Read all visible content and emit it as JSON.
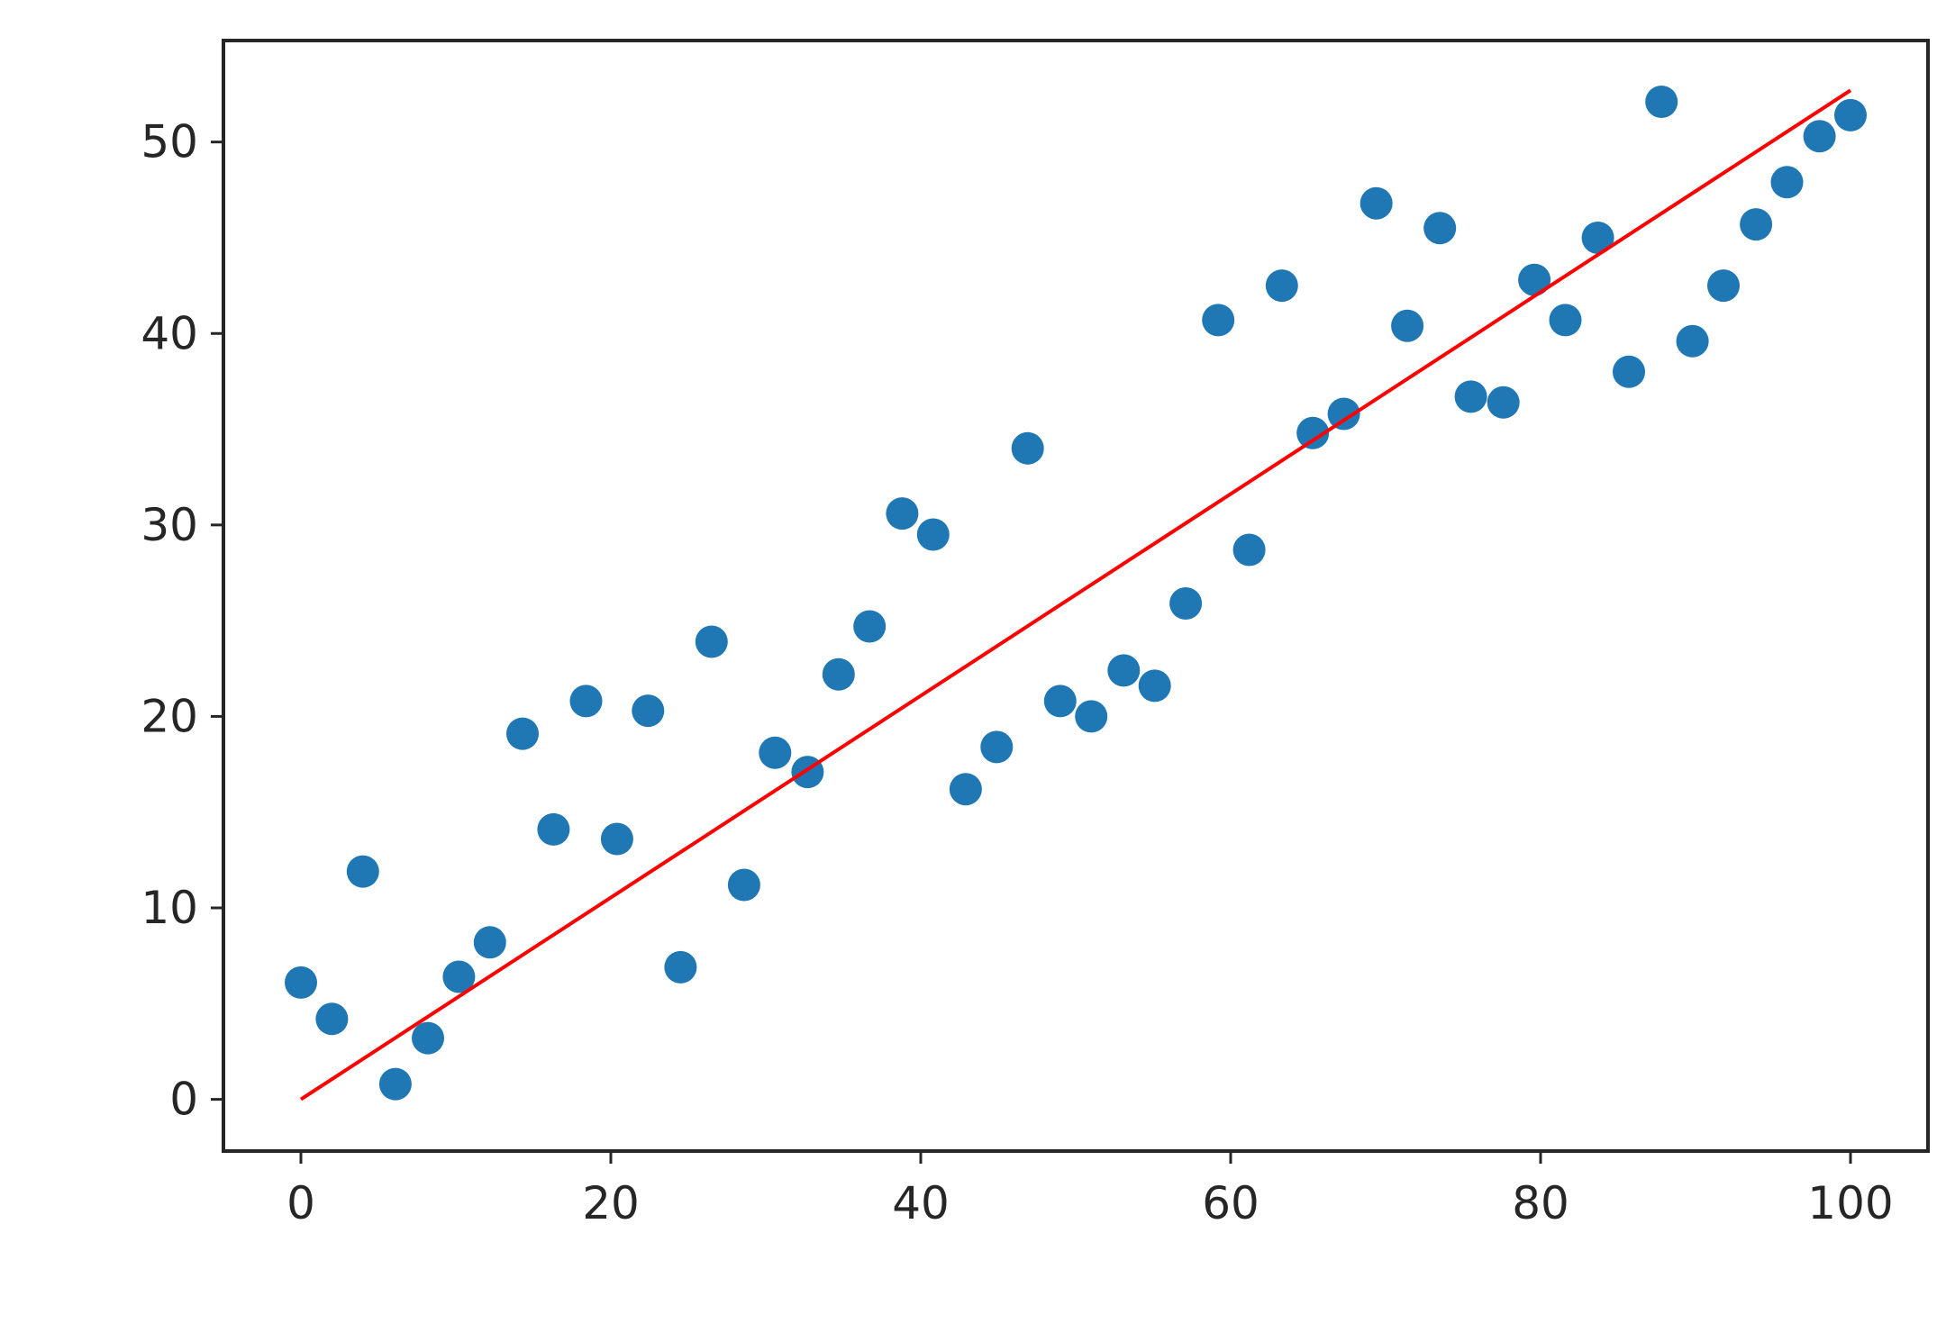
{
  "chart_data": {
    "type": "scatter",
    "title": "",
    "xlabel": "",
    "ylabel": "",
    "xlim": [
      -5,
      105
    ],
    "ylim": [
      -2.7,
      55.3
    ],
    "x_ticks": [
      0,
      20,
      40,
      60,
      80,
      100
    ],
    "y_ticks": [
      0,
      10,
      20,
      30,
      40,
      50
    ],
    "grid": false,
    "legend": "none",
    "colors": {
      "points": "#1f77b4",
      "fit_line": "#ff0000",
      "axes": "#262626",
      "background": "#ffffff"
    },
    "series": [
      {
        "kind": "points",
        "x": [
          0,
          2,
          4,
          6.1,
          8.2,
          10.2,
          12.2,
          14.3,
          16.3,
          18.4,
          20.4,
          22.4,
          24.5,
          26.5,
          28.6,
          30.6,
          32.7,
          34.7,
          36.7,
          38.8,
          40.8,
          42.9,
          44.9,
          46.9,
          49,
          51,
          53.1,
          55.1,
          57.1,
          59.2,
          61.2,
          63.3,
          65.3,
          67.3,
          69.4,
          71.4,
          73.5,
          75.5,
          77.6,
          79.6,
          81.6,
          83.7,
          85.7,
          87.8,
          89.8,
          91.8,
          93.9,
          95.9,
          98,
          100
        ],
        "y": [
          6.1,
          4.2,
          11.9,
          0.8,
          3.2,
          6.4,
          8.2,
          19.1,
          14.1,
          20.8,
          13.6,
          20.3,
          6.9,
          23.9,
          11.2,
          18.1,
          17.1,
          22.2,
          24.7,
          30.6,
          29.5,
          16.2,
          18.4,
          34.0,
          20.8,
          20.0,
          22.4,
          21.6,
          25.9,
          40.7,
          28.7,
          42.5,
          34.8,
          35.8,
          46.8,
          40.4,
          45.5,
          36.7,
          36.4,
          42.8,
          40.7,
          45.0,
          38.0,
          52.1,
          39.6,
          42.5,
          45.7,
          47.9,
          50.3,
          51.4
        ]
      },
      {
        "kind": "line",
        "x": [
          0,
          100
        ],
        "y": [
          0.0,
          52.7
        ]
      }
    ]
  }
}
